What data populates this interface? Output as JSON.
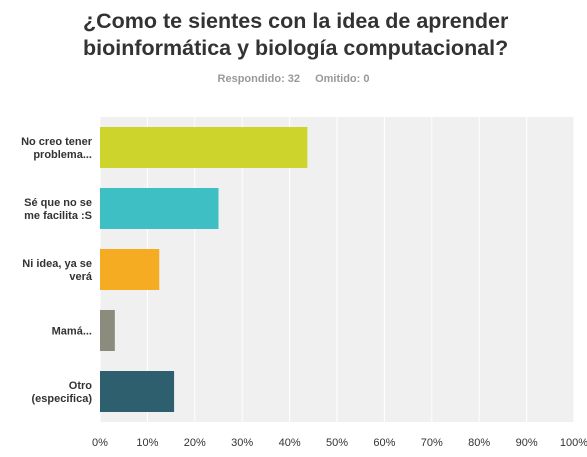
{
  "question": {
    "title_lines": [
      "¿Como te sientes con la idea de aprender",
      "bioinformática y biología computacional?"
    ]
  },
  "stats": {
    "answered": "Respondido: 32",
    "skipped": "Omitido: 0"
  },
  "chart_data": {
    "type": "bar",
    "orientation": "horizontal",
    "categories": [
      [
        "No creo tener",
        "problema..."
      ],
      [
        "Sé que no se",
        "me facilita :S"
      ],
      [
        "Ni idea, ya se",
        "verá"
      ],
      [
        "Mamá..."
      ],
      [
        "Otro",
        "(especifica)"
      ]
    ],
    "values": [
      43.75,
      25.0,
      12.5,
      3.13,
      15.63
    ],
    "colors": [
      "#cdd52d",
      "#3dbfc4",
      "#f5ab22",
      "#8c8c7e",
      "#2e5f6e"
    ],
    "xlim": [
      0,
      100
    ],
    "xticks": [
      0,
      10,
      20,
      30,
      40,
      50,
      60,
      70,
      80,
      90,
      100
    ],
    "xtick_labels": [
      "0%",
      "10%",
      "20%",
      "30%",
      "40%",
      "50%",
      "60%",
      "70%",
      "80%",
      "90%",
      "100%"
    ],
    "grid": true,
    "grid_background": "#f0f0f0",
    "grid_line_color": "#ffffff"
  }
}
